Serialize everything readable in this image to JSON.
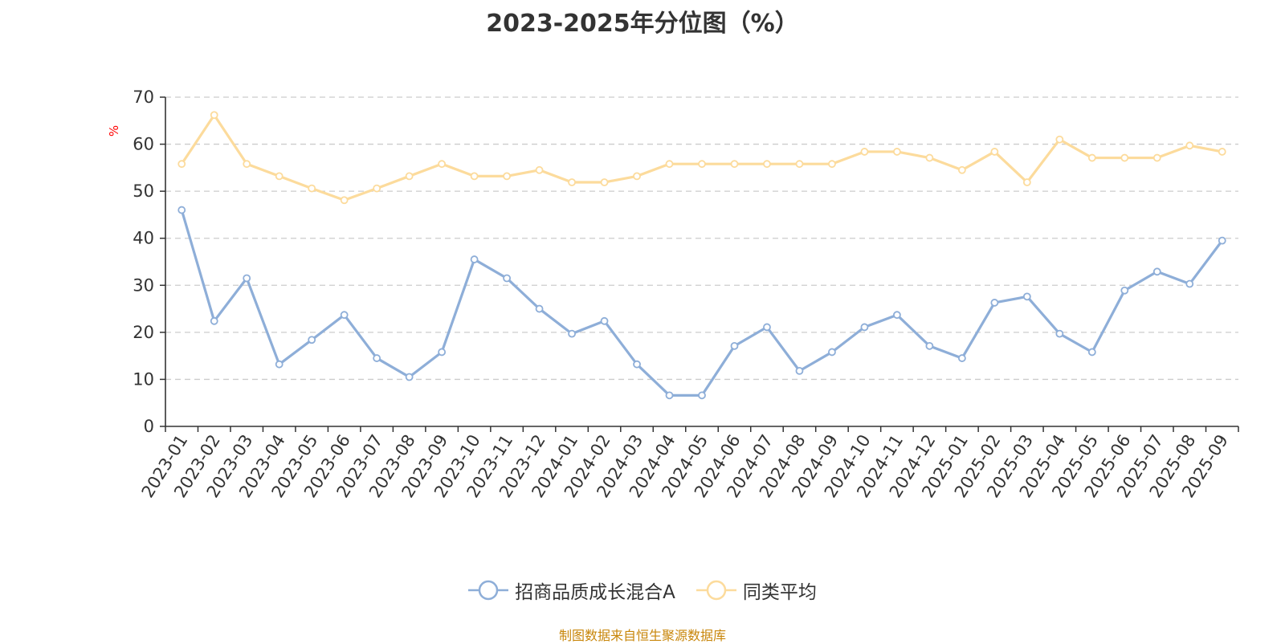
{
  "chart_data": {
    "type": "line",
    "title": "2023-2025年分位图（%）",
    "ylabel": "%",
    "ylim": [
      0,
      70
    ],
    "yticks": [
      0,
      10,
      20,
      30,
      40,
      50,
      60,
      70
    ],
    "grid": true,
    "legend_position": "bottom",
    "categories": [
      "2023-01",
      "2023-02",
      "2023-03",
      "2023-04",
      "2023-05",
      "2023-06",
      "2023-07",
      "2023-08",
      "2023-09",
      "2023-10",
      "2023-11",
      "2023-12",
      "2024-01",
      "2024-02",
      "2024-03",
      "2024-04",
      "2024-05",
      "2024-06",
      "2024-07",
      "2024-08",
      "2024-09",
      "2024-10",
      "2024-11",
      "2024-12",
      "2025-01",
      "2025-02",
      "2025-03",
      "2025-04",
      "2025-05",
      "2025-06",
      "2025-07",
      "2025-08",
      "2025-09"
    ],
    "series": [
      {
        "name": "招商品质成长混合A",
        "color": "#8eaed8",
        "values": [
          46.0,
          22.4,
          31.5,
          13.2,
          18.4,
          23.7,
          14.5,
          10.5,
          15.8,
          35.5,
          31.5,
          25.0,
          19.7,
          22.4,
          13.2,
          6.6,
          6.6,
          17.1,
          21.1,
          11.8,
          15.8,
          21.1,
          23.7,
          17.1,
          14.5,
          26.3,
          27.6,
          19.7,
          15.8,
          28.9,
          32.9,
          30.3,
          39.5
        ]
      },
      {
        "name": "同类平均",
        "color": "#fcdb9c",
        "values": [
          55.8,
          66.2,
          55.8,
          53.2,
          50.6,
          48.1,
          50.6,
          53.2,
          55.8,
          53.2,
          53.2,
          54.5,
          51.9,
          51.9,
          53.2,
          55.8,
          55.8,
          55.8,
          55.8,
          55.8,
          55.8,
          58.4,
          58.4,
          57.1,
          54.5,
          58.4,
          51.9,
          61.0,
          57.1,
          57.1,
          57.1,
          59.7,
          58.4
        ]
      }
    ]
  },
  "source_note": "制图数据来自恒生聚源数据库",
  "colors": {
    "axis": "#333333",
    "grid": "#cccccc",
    "unit_label": "#ff0000",
    "source_note": "#c8860a"
  }
}
